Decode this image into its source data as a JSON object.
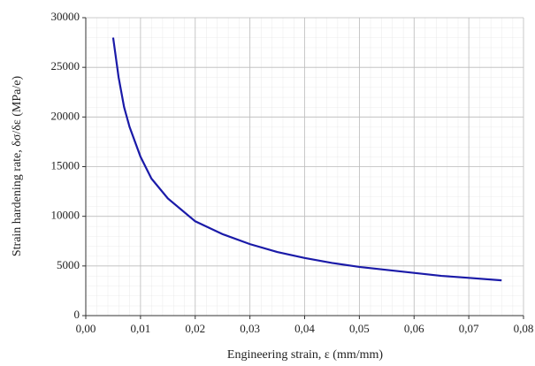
{
  "chart_data": {
    "type": "line",
    "x_label": "Engineering strain, ε (mm/mm)",
    "y_label": "Strain hardening rate, δσ/δε (MPa/e)",
    "x": [
      0.005,
      0.006,
      0.007,
      0.008,
      0.01,
      0.012,
      0.015,
      0.02,
      0.025,
      0.03,
      0.035,
      0.04,
      0.045,
      0.05,
      0.055,
      0.06,
      0.065,
      0.07,
      0.076
    ],
    "series": [
      {
        "color": "#1a1aa8",
        "values": [
          28000,
          24000,
          21000,
          19000,
          16000,
          13800,
          11800,
          9500,
          8200,
          7200,
          6400,
          5800,
          5300,
          4900,
          4600,
          4300,
          4000,
          3800,
          3550
        ]
      }
    ],
    "xlim": [
      0,
      0.08
    ],
    "xticks": [
      {
        "value": 0,
        "label": "0,00"
      },
      {
        "value": 0.01,
        "label": "0,01"
      },
      {
        "value": 0.02,
        "label": "0,02"
      },
      {
        "value": 0.03,
        "label": "0,03"
      },
      {
        "value": 0.04,
        "label": "0,04"
      },
      {
        "value": 0.05,
        "label": "0,05"
      },
      {
        "value": 0.06,
        "label": "0,06"
      },
      {
        "value": 0.07,
        "label": "0,07"
      },
      {
        "value": 0.08,
        "label": "0,08"
      }
    ],
    "ylim": [
      0,
      30000
    ],
    "yticks": [
      0,
      5000,
      10000,
      15000,
      20000,
      25000,
      30000
    ],
    "grid": true
  }
}
